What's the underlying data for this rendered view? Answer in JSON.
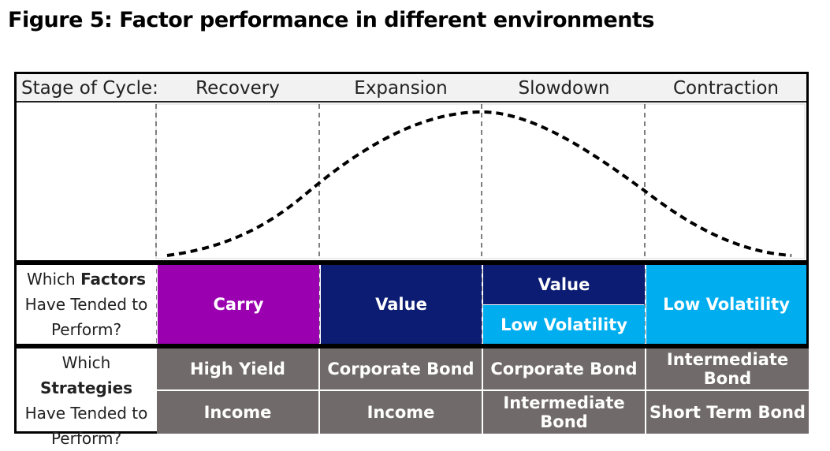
{
  "title": "Figure 5: Factor performance in different environments",
  "header": {
    "stage_label": "Stage of Cycle:",
    "stages": [
      "Recovery",
      "Expansion",
      "Slowdown",
      "Contraction"
    ]
  },
  "factors": {
    "row_label_pre": "Which ",
    "row_label_bold": "Factors",
    "row_label_line2": "Have Tended to",
    "row_label_line3": "Perform?",
    "recovery": "Carry",
    "expansion": "Value",
    "slowdown_top": "Value",
    "slowdown_bottom": "Low Volatility",
    "contraction": "Low Volatility"
  },
  "strategies": {
    "row_label_pre": "Which ",
    "row_label_bold": "Strategies",
    "row_label_line2": "Have Tended to",
    "row_label_line3": "Perform?",
    "recovery": [
      "High Yield",
      "Income"
    ],
    "expansion": [
      "Corporate Bond",
      "Income"
    ],
    "slowdown": [
      "Corporate Bond",
      "Intermediate Bond"
    ],
    "contraction": [
      "Intermediate Bond",
      "Short Term Bond"
    ]
  },
  "colors": {
    "carry": "#9a00b0",
    "value": "#0b1c72",
    "low_volatility": "#00aeef",
    "strategy": "#716a6a"
  }
}
